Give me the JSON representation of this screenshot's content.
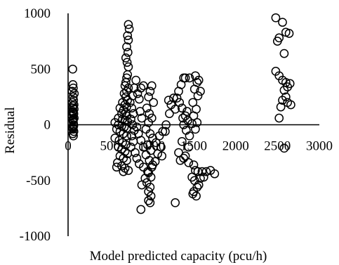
{
  "chart_data": {
    "type": "scatter",
    "title": "",
    "xlabel": "Model predicted capacity (pcu/h)",
    "ylabel": "Residual",
    "xlim": [
      0,
      3000
    ],
    "ylim": [
      -1000,
      1000
    ],
    "x_ticks": [
      0,
      500,
      1000,
      1500,
      2000,
      2500,
      3000
    ],
    "y_ticks": [
      1000,
      500,
      0,
      -500,
      -1000
    ],
    "x_tick_labels": [
      "0",
      "500",
      "1000",
      "1500",
      "2000",
      "2500",
      "3000"
    ],
    "y_tick_labels": [
      "1000",
      "500",
      "0",
      "-500",
      "-1000"
    ],
    "grid": false,
    "legend": "none",
    "marker": "open-circle",
    "series": [
      {
        "points": [
          [
            55,
            500
          ],
          [
            58,
            360
          ],
          [
            62,
            330
          ],
          [
            50,
            300
          ],
          [
            60,
            250
          ],
          [
            65,
            220
          ],
          [
            52,
            200
          ],
          [
            70,
            180
          ],
          [
            55,
            150
          ],
          [
            60,
            120
          ],
          [
            68,
            100
          ],
          [
            50,
            80
          ],
          [
            72,
            60
          ],
          [
            58,
            40
          ],
          [
            63,
            20
          ],
          [
            66,
            0
          ],
          [
            54,
            -20
          ],
          [
            61,
            -40
          ],
          [
            69,
            -60
          ],
          [
            57,
            -80
          ],
          [
            64,
            -100
          ],
          [
            52,
            110
          ],
          [
            71,
            140
          ],
          [
            59,
            170
          ],
          [
            67,
            -10
          ],
          [
            60,
            50
          ],
          [
            74,
            280
          ],
          [
            53,
            -30
          ],
          [
            65,
            90
          ],
          [
            720,
            900
          ],
          [
            730,
            860
          ],
          [
            710,
            800
          ],
          [
            720,
            760
          ],
          [
            700,
            700
          ],
          [
            715,
            650
          ],
          [
            690,
            600
          ],
          [
            705,
            560
          ],
          [
            720,
            520
          ],
          [
            710,
            450
          ],
          [
            700,
            420
          ],
          [
            690,
            380
          ],
          [
            680,
            350
          ],
          [
            720,
            330
          ],
          [
            700,
            300
          ],
          [
            670,
            280
          ],
          [
            690,
            250
          ],
          [
            710,
            220
          ],
          [
            650,
            200
          ],
          [
            680,
            180
          ],
          [
            700,
            160
          ],
          [
            620,
            150
          ],
          [
            660,
            130
          ],
          [
            690,
            110
          ],
          [
            640,
            100
          ],
          [
            700,
            80
          ],
          [
            600,
            60
          ],
          [
            650,
            50
          ],
          [
            680,
            40
          ],
          [
            710,
            30
          ],
          [
            560,
            20
          ],
          [
            600,
            0
          ],
          [
            640,
            -10
          ],
          [
            670,
            -20
          ],
          [
            700,
            -30
          ],
          [
            580,
            -40
          ],
          [
            620,
            -60
          ],
          [
            660,
            -80
          ],
          [
            700,
            -100
          ],
          [
            560,
            -120
          ],
          [
            610,
            -140
          ],
          [
            650,
            -160
          ],
          [
            690,
            -180
          ],
          [
            600,
            -200
          ],
          [
            640,
            -220
          ],
          [
            680,
            -240
          ],
          [
            710,
            -260
          ],
          [
            620,
            -280
          ],
          [
            660,
            -300
          ],
          [
            700,
            -320
          ],
          [
            590,
            -340
          ],
          [
            640,
            -370
          ],
          [
            680,
            -390
          ],
          [
            580,
            -380
          ],
          [
            720,
            -410
          ],
          [
            660,
            -420
          ],
          [
            740,
            200
          ],
          [
            760,
            150
          ],
          [
            780,
            100
          ],
          [
            750,
            50
          ],
          [
            770,
            0
          ],
          [
            790,
            -50
          ],
          [
            760,
            -100
          ],
          [
            780,
            -150
          ],
          [
            750,
            -200
          ],
          [
            800,
            -250
          ],
          [
            770,
            260
          ],
          [
            790,
            330
          ],
          [
            810,
            400
          ],
          [
            830,
            280
          ],
          [
            850,
            230
          ],
          [
            870,
            330
          ],
          [
            900,
            350
          ],
          [
            860,
            120
          ],
          [
            880,
            60
          ],
          [
            820,
            -20
          ],
          [
            840,
            -80
          ],
          [
            870,
            -140
          ],
          [
            900,
            -200
          ],
          [
            820,
            -300
          ],
          [
            850,
            -350
          ],
          [
            1000,
            350
          ],
          [
            980,
            300
          ],
          [
            960,
            250
          ],
          [
            1020,
            200
          ],
          [
            940,
            150
          ],
          [
            970,
            100
          ],
          [
            1000,
            60
          ],
          [
            960,
            20
          ],
          [
            930,
            -40
          ],
          [
            980,
            -80
          ],
          [
            1010,
            -120
          ],
          [
            950,
            -180
          ],
          [
            990,
            -230
          ],
          [
            930,
            -270
          ],
          [
            970,
            -320
          ],
          [
            1010,
            -360
          ],
          [
            950,
            -420
          ],
          [
            990,
            -470
          ],
          [
            940,
            -520
          ],
          [
            980,
            -560
          ],
          [
            960,
            -600
          ],
          [
            990,
            -640
          ],
          [
            960,
            -680
          ],
          [
            980,
            -700
          ],
          [
            870,
            -760
          ],
          [
            880,
            -540
          ],
          [
            920,
            -480
          ],
          [
            960,
            -430
          ],
          [
            900,
            -380
          ],
          [
            1000,
            -380
          ],
          [
            1040,
            -330
          ],
          [
            1070,
            -260
          ],
          [
            1110,
            -200
          ],
          [
            1050,
            -160
          ],
          [
            1090,
            -100
          ],
          [
            1130,
            -60
          ],
          [
            1170,
            0
          ],
          [
            1160,
            -60
          ],
          [
            1120,
            -280
          ],
          [
            1200,
            220
          ],
          [
            1230,
            180
          ],
          [
            1260,
            240
          ],
          [
            1210,
            100
          ],
          [
            1280,
            140
          ],
          [
            1320,
            300
          ],
          [
            1350,
            360
          ],
          [
            1380,
            420
          ],
          [
            1400,
            420
          ],
          [
            1450,
            420
          ],
          [
            1330,
            200
          ],
          [
            1360,
            150
          ],
          [
            1400,
            80
          ],
          [
            1430,
            40
          ],
          [
            1380,
            0
          ],
          [
            1410,
            -50
          ],
          [
            1450,
            -100
          ],
          [
            1360,
            -150
          ],
          [
            1440,
            -200
          ],
          [
            1320,
            -250
          ],
          [
            1400,
            -280
          ],
          [
            1380,
            -300
          ],
          [
            1440,
            -340
          ],
          [
            1340,
            -320
          ],
          [
            1370,
            60
          ],
          [
            1300,
            240
          ],
          [
            1420,
            120
          ],
          [
            1500,
            -360
          ],
          [
            1520,
            -410
          ],
          [
            1480,
            -470
          ],
          [
            1550,
            -420
          ],
          [
            1600,
            -420
          ],
          [
            1650,
            -420
          ],
          [
            1700,
            -410
          ],
          [
            1750,
            -440
          ],
          [
            1510,
            -500
          ],
          [
            1540,
            -560
          ],
          [
            1500,
            -600
          ],
          [
            1530,
            -640
          ],
          [
            1560,
            -540
          ],
          [
            1580,
            -480
          ],
          [
            1620,
            -470
          ],
          [
            1490,
            -620
          ],
          [
            1520,
            440
          ],
          [
            1540,
            380
          ],
          [
            1510,
            320
          ],
          [
            1550,
            260
          ],
          [
            1490,
            200
          ],
          [
            1530,
            140
          ],
          [
            1500,
            80
          ],
          [
            1540,
            20
          ],
          [
            1520,
            -40
          ],
          [
            1560,
            400
          ],
          [
            1580,
            300
          ],
          [
            1480,
            10
          ],
          [
            1280,
            -700
          ],
          [
            2480,
            960
          ],
          [
            2560,
            920
          ],
          [
            2520,
            780
          ],
          [
            2500,
            750
          ],
          [
            2600,
            830
          ],
          [
            2640,
            820
          ],
          [
            2580,
            640
          ],
          [
            2480,
            480
          ],
          [
            2520,
            440
          ],
          [
            2560,
            400
          ],
          [
            2600,
            380
          ],
          [
            2620,
            340
          ],
          [
            2650,
            370
          ],
          [
            2580,
            310
          ],
          [
            2600,
            250
          ],
          [
            2620,
            200
          ],
          [
            2660,
            180
          ],
          [
            2540,
            160
          ],
          [
            2560,
            220
          ],
          [
            2520,
            60
          ],
          [
            2580,
            -210
          ]
        ]
      }
    ]
  }
}
